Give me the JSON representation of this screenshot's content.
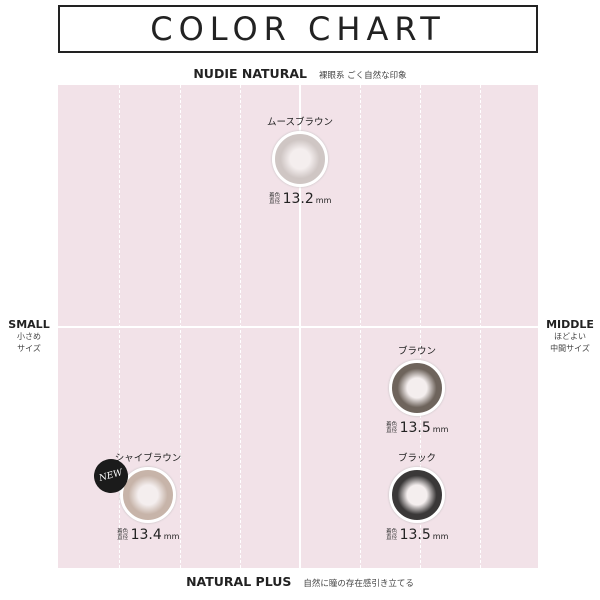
{
  "title": "COLOR CHART",
  "axes": {
    "top": {
      "en": "NUDIE NATURAL",
      "jp": "裸眼系 ごく自然な印象"
    },
    "bottom": {
      "en": "NATURAL PLUS",
      "jp": "自然に瞳の存在感引き立てる"
    },
    "left": {
      "en": "SMALL",
      "jp1": "小さめ",
      "jp2": "サイズ"
    },
    "right": {
      "en": "MIDDLE",
      "jp1": "ほどよい",
      "jp2": "中間サイズ"
    }
  },
  "diameter_label": "着色直径",
  "unit": "mm",
  "lenses": [
    {
      "name": "ムースブラウン",
      "diameter": "13.2",
      "color": "#cfc6c4"
    },
    {
      "name": "ブラウン",
      "diameter": "13.5",
      "color": "#6e645c"
    },
    {
      "name": "ブラック",
      "diameter": "13.5",
      "color": "#3a3838"
    },
    {
      "name": "シャイブラウン",
      "diameter": "13.4",
      "color": "#c7b4a9",
      "badge": "NEW"
    }
  ]
}
